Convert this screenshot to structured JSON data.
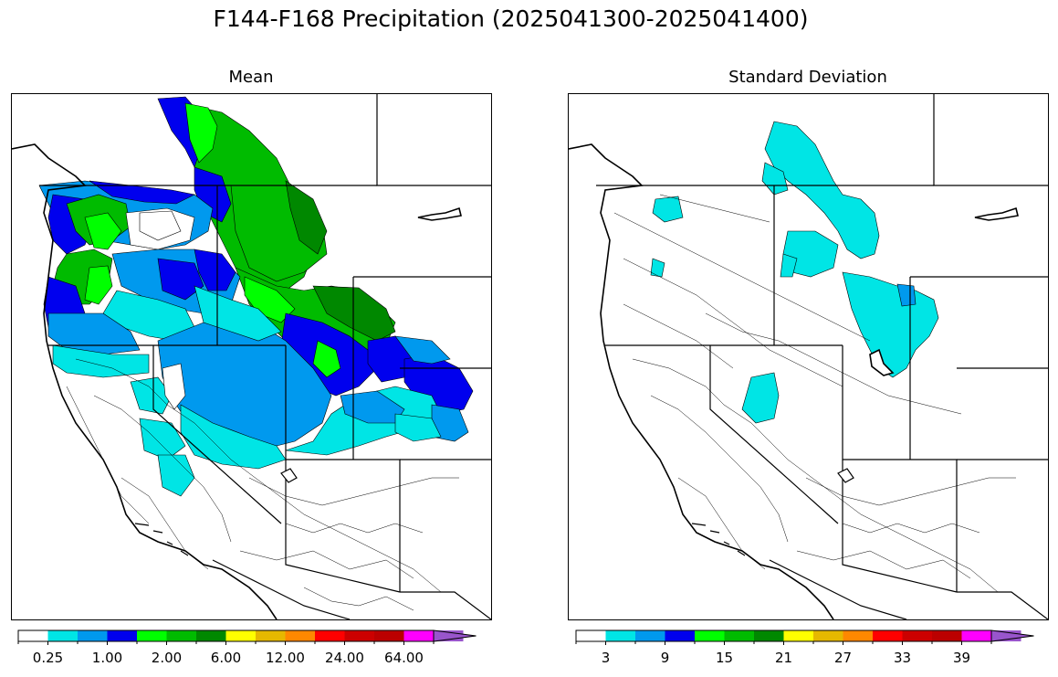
{
  "figure": {
    "title": "F144-F168 Precipitation (2025041300-2025041400)"
  },
  "panels": [
    {
      "title": "Mean",
      "colorbar": {
        "colors": [
          "#ffffff",
          "#00e5e5",
          "#0099ee",
          "#0000ee",
          "#00ff00",
          "#00bb00",
          "#008800",
          "#ffff00",
          "#e6b800",
          "#ff8800",
          "#ff0000",
          "#cc0000",
          "#bb0000",
          "#ff00ff",
          "#9955cc"
        ],
        "tick_labels": [
          "0.25",
          "1.00",
          "2.00",
          "6.00",
          "12.00",
          "24.00",
          "64.00"
        ],
        "extend": "max"
      }
    },
    {
      "title": "Standard Deviation",
      "colorbar": {
        "colors": [
          "#ffffff",
          "#00e5e5",
          "#0099ee",
          "#0000ee",
          "#00ff00",
          "#00bb00",
          "#008800",
          "#ffff00",
          "#e6b800",
          "#ff8800",
          "#ff0000",
          "#cc0000",
          "#bb0000",
          "#ff00ff",
          "#9955cc"
        ],
        "tick_labels": [
          "3",
          "9",
          "15",
          "21",
          "27",
          "33",
          "39"
        ],
        "extend": "max"
      }
    }
  ]
}
